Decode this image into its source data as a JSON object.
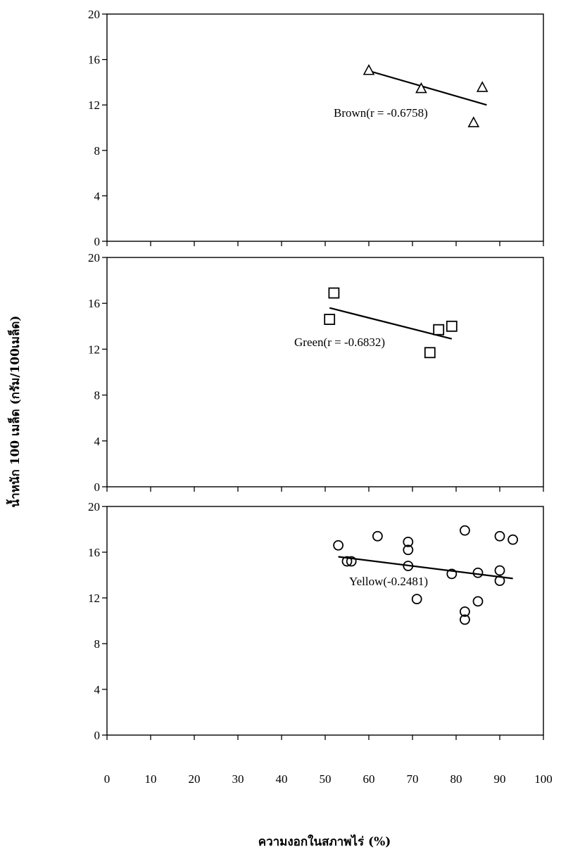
{
  "chart_data": {
    "type": "scatter",
    "ylabel": "น้ำหนัก 100 เมล็ด (กรัม/100เมล็ด)",
    "xlabel": "ความงอกในสภาพไร่ (%)",
    "xlim": [
      0,
      100
    ],
    "x_ticks": [
      "0",
      "10",
      "20",
      "30",
      "40",
      "50",
      "60",
      "70",
      "80",
      "90",
      "100"
    ],
    "ylim": [
      0,
      20
    ],
    "y_ticks": [
      "0",
      "4",
      "8",
      "12",
      "16",
      "20"
    ],
    "grid": false,
    "panels": [
      {
        "name": "Brown",
        "marker": "triangle",
        "annotation": "Brown(r = -0.6758)",
        "trendline": {
          "x": [
            60,
            87
          ],
          "y": [
            15.0,
            12.0
          ]
        },
        "points": [
          {
            "x": 60,
            "y": 15.0
          },
          {
            "x": 72,
            "y": 13.4
          },
          {
            "x": 84,
            "y": 10.4
          },
          {
            "x": 86,
            "y": 13.5
          }
        ]
      },
      {
        "name": "Green",
        "marker": "square",
        "annotation": "Green(r = -0.6832)",
        "trendline": {
          "x": [
            51,
            79
          ],
          "y": [
            15.6,
            12.9
          ]
        },
        "points": [
          {
            "x": 51,
            "y": 14.6
          },
          {
            "x": 52,
            "y": 16.9
          },
          {
            "x": 74,
            "y": 11.7
          },
          {
            "x": 76,
            "y": 13.7
          },
          {
            "x": 79,
            "y": 14.0
          }
        ]
      },
      {
        "name": "Yellow",
        "marker": "circle",
        "annotation": "Yellow(-0.2481)",
        "trendline": {
          "x": [
            53,
            93
          ],
          "y": [
            15.6,
            13.7
          ]
        },
        "points": [
          {
            "x": 53,
            "y": 16.6
          },
          {
            "x": 55,
            "y": 15.2
          },
          {
            "x": 56,
            "y": 15.2
          },
          {
            "x": 62,
            "y": 17.4
          },
          {
            "x": 69,
            "y": 16.9
          },
          {
            "x": 69,
            "y": 16.2
          },
          {
            "x": 69,
            "y": 14.8
          },
          {
            "x": 71,
            "y": 11.9
          },
          {
            "x": 79,
            "y": 14.1
          },
          {
            "x": 82,
            "y": 17.9
          },
          {
            "x": 82,
            "y": 10.8
          },
          {
            "x": 82,
            "y": 10.1
          },
          {
            "x": 85,
            "y": 11.7
          },
          {
            "x": 85,
            "y": 14.2
          },
          {
            "x": 90,
            "y": 17.4
          },
          {
            "x": 90,
            "y": 14.4
          },
          {
            "x": 90,
            "y": 13.5
          },
          {
            "x": 93,
            "y": 17.1
          }
        ]
      }
    ]
  }
}
